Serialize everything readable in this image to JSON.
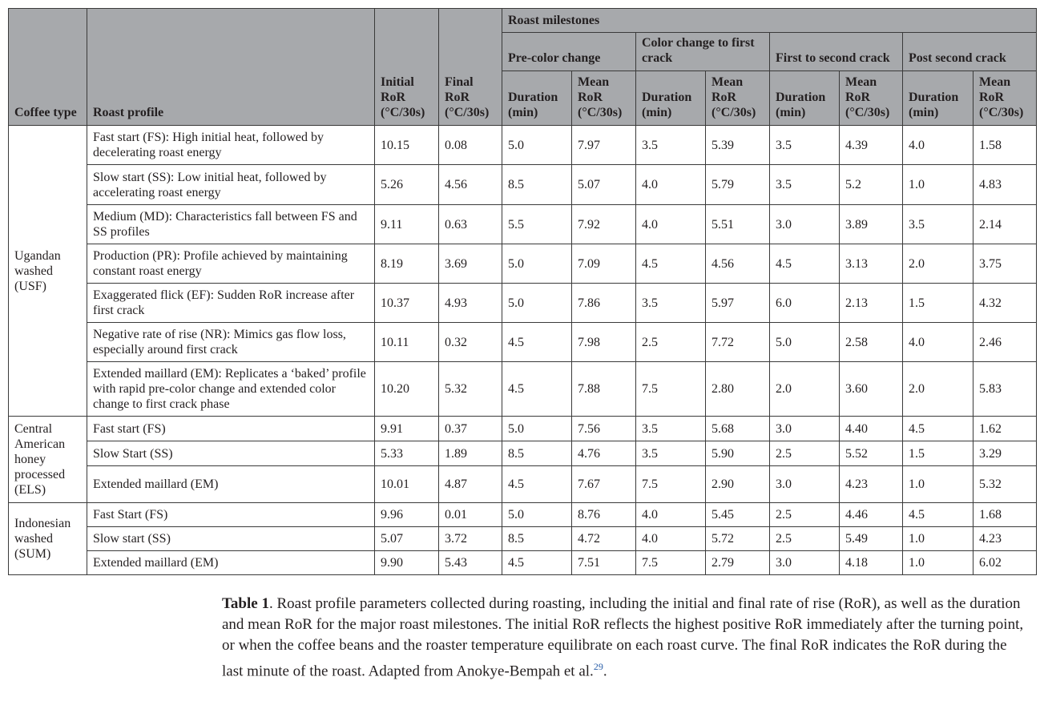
{
  "table": {
    "headers": {
      "coffee_type": "Coffee type",
      "roast_profile": "Roast profile",
      "initial_ror": "Initial RoR (°C/30s)",
      "final_ror": "Final RoR (°C/30s)",
      "roast_milestones": "Roast milestones",
      "phases": [
        "Pre-color change",
        "Color change to first crack",
        "First to second crack",
        "Post second crack"
      ],
      "duration": "Duration (min)",
      "mean_ror": "Mean RoR (°C/30s)"
    },
    "groups": [
      {
        "coffee_type": "Ugandan washed (USF)",
        "rows": [
          {
            "profile": "Fast start (FS): High initial heat, followed by decelerating roast energy",
            "values": [
              "10.15",
              "0.08",
              "5.0",
              "7.97",
              "3.5",
              "5.39",
              "3.5",
              "4.39",
              "4.0",
              "1.58"
            ]
          },
          {
            "profile": "Slow start (SS): Low initial heat, followed by accelerating roast energy",
            "values": [
              "5.26",
              "4.56",
              "8.5",
              "5.07",
              "4.0",
              "5.79",
              "3.5",
              "5.2",
              "1.0",
              "4.83"
            ]
          },
          {
            "profile": "Medium (MD): Characteristics fall between FS and SS profiles",
            "values": [
              "9.11",
              "0.63",
              "5.5",
              "7.92",
              "4.0",
              "5.51",
              "3.0",
              "3.89",
              "3.5",
              "2.14"
            ]
          },
          {
            "profile": "Production (PR): Profile achieved by maintaining constant roast energy",
            "values": [
              "8.19",
              "3.69",
              "5.0",
              "7.09",
              "4.5",
              "4.56",
              "4.5",
              "3.13",
              "2.0",
              "3.75"
            ]
          },
          {
            "profile": "Exaggerated flick (EF): Sudden RoR increase after first crack",
            "values": [
              "10.37",
              "4.93",
              "5.0",
              "7.86",
              "3.5",
              "5.97",
              "6.0",
              "2.13",
              "1.5",
              "4.32"
            ]
          },
          {
            "profile": "Negative rate of rise (NR): Mimics gas flow loss, especially around first crack",
            "values": [
              "10.11",
              "0.32",
              "4.5",
              "7.98",
              "2.5",
              "7.72",
              "5.0",
              "2.58",
              "4.0",
              "2.46"
            ]
          },
          {
            "profile": "Extended maillard (EM): Replicates a ‘baked’ profile with rapid pre-color change and extended color change to first crack phase",
            "values": [
              "10.20",
              "5.32",
              "4.5",
              "7.88",
              "7.5",
              "2.80",
              "2.0",
              "3.60",
              "2.0",
              "5.83"
            ]
          }
        ]
      },
      {
        "coffee_type": "Central American honey processed (ELS)",
        "rows": [
          {
            "profile": "Fast start (FS)",
            "values": [
              "9.91",
              "0.37",
              "5.0",
              "7.56",
              "3.5",
              "5.68",
              "3.0",
              "4.40",
              "4.5",
              "1.62"
            ]
          },
          {
            "profile": "Slow Start (SS)",
            "values": [
              "5.33",
              "1.89",
              "8.5",
              "4.76",
              "3.5",
              "5.90",
              "2.5",
              "5.52",
              "1.5",
              "3.29"
            ]
          },
          {
            "profile": "Extended maillard (EM)",
            "values": [
              "10.01",
              "4.87",
              "4.5",
              "7.67",
              "7.5",
              "2.90",
              "3.0",
              "4.23",
              "1.0",
              "5.32"
            ]
          }
        ]
      },
      {
        "coffee_type": "Indonesian washed (SUM)",
        "rows": [
          {
            "profile": "Fast Start (FS)",
            "values": [
              "9.96",
              "0.01",
              "5.0",
              "8.76",
              "4.0",
              "5.45",
              "2.5",
              "4.46",
              "4.5",
              "1.68"
            ]
          },
          {
            "profile": "Slow start (SS)",
            "values": [
              "5.07",
              "3.72",
              "8.5",
              "4.72",
              "4.0",
              "5.72",
              "2.5",
              "5.49",
              "1.0",
              "4.23"
            ]
          },
          {
            "profile": "Extended maillard (EM)",
            "values": [
              "9.90",
              "5.43",
              "4.5",
              "7.51",
              "7.5",
              "2.79",
              "3.0",
              "4.18",
              "1.0",
              "6.02"
            ]
          }
        ]
      }
    ]
  },
  "caption": {
    "label": "Table 1",
    "text": ". Roast profile parameters collected during roasting, including the initial and final rate of rise (RoR), as well as the duration and mean RoR for the major roast milestones. The initial RoR reflects the highest positive RoR immediately after the turning point, or when the coffee beans and the roaster temperature equilibrate on each roast curve. The final RoR indicates the RoR during the last minute of the roast. Adapted from Anokye-Bempah et al.",
    "ref": "29",
    "end": "."
  }
}
